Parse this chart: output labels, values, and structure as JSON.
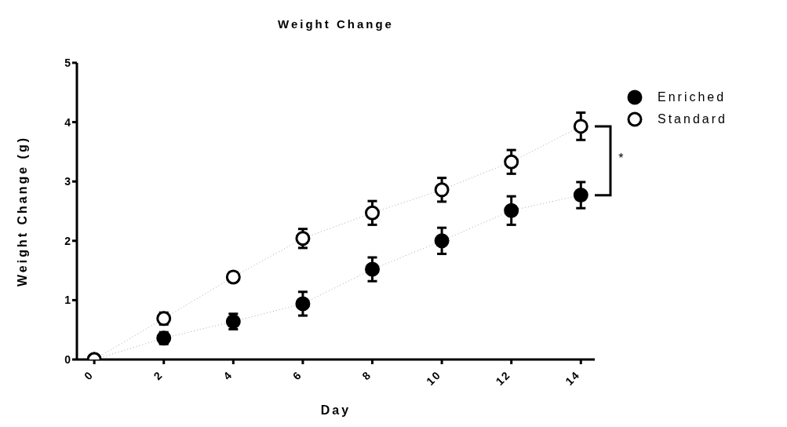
{
  "chart_data": {
    "type": "line",
    "title": "Weight Change",
    "xlabel": "Day",
    "ylabel": "Weight Change (g)",
    "x": [
      0,
      2,
      4,
      6,
      8,
      10,
      12,
      14
    ],
    "series": [
      {
        "name": "Enriched",
        "color": "#000000",
        "values": [
          0,
          0.36,
          0.64,
          0.94,
          1.52,
          2.0,
          2.51,
          2.77
        ],
        "errors": [
          null,
          0.1,
          0.13,
          0.2,
          0.2,
          0.22,
          0.24,
          0.22
        ]
      },
      {
        "name": "Standard",
        "color": "#000000",
        "values": [
          0,
          0.69,
          1.39,
          2.04,
          2.47,
          2.86,
          3.33,
          3.93
        ],
        "errors": [
          null,
          0.1,
          0.08,
          0.16,
          0.2,
          0.2,
          0.2,
          0.23
        ]
      }
    ],
    "xlim": [
      -0.5,
      14.4
    ],
    "xticks": [
      0,
      2,
      4,
      6,
      8,
      10,
      12,
      14
    ],
    "ylim": [
      0,
      5
    ],
    "yticks": [
      0,
      1,
      2,
      3,
      4,
      5
    ],
    "grid": false,
    "legend": "top right",
    "marker": "circle",
    "line_style": "dotted",
    "annotations": [
      "*"
    ]
  }
}
